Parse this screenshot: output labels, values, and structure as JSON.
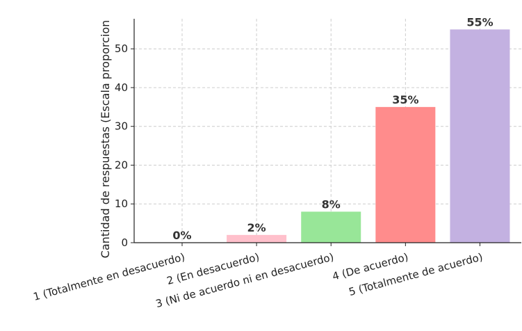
{
  "chart_data": {
    "type": "bar",
    "categories": [
      "1 (Totalmente en desacuerdo)",
      "2 (En desacuerdo)",
      "3 (Ni de acuerdo ni en desacuerdo)",
      "4 (De acuerdo)",
      "5 (Totalmente de acuerdo)"
    ],
    "values": [
      0,
      2,
      8,
      35,
      55
    ],
    "data_labels": [
      "0%",
      "2%",
      "8%",
      "35%",
      "55%"
    ],
    "colors": [
      "#ffd6dc",
      "#ffc0cb",
      "#98e698",
      "#ff8c8c",
      "#c3b1e1"
    ],
    "title": "",
    "xlabel": "",
    "ylabel": "Cantidad de respuestas (Escala proporcion",
    "ylim": [
      0,
      57.75
    ],
    "yticks": [
      0,
      10,
      20,
      30,
      40,
      50
    ],
    "grid": true,
    "legend": "none"
  }
}
